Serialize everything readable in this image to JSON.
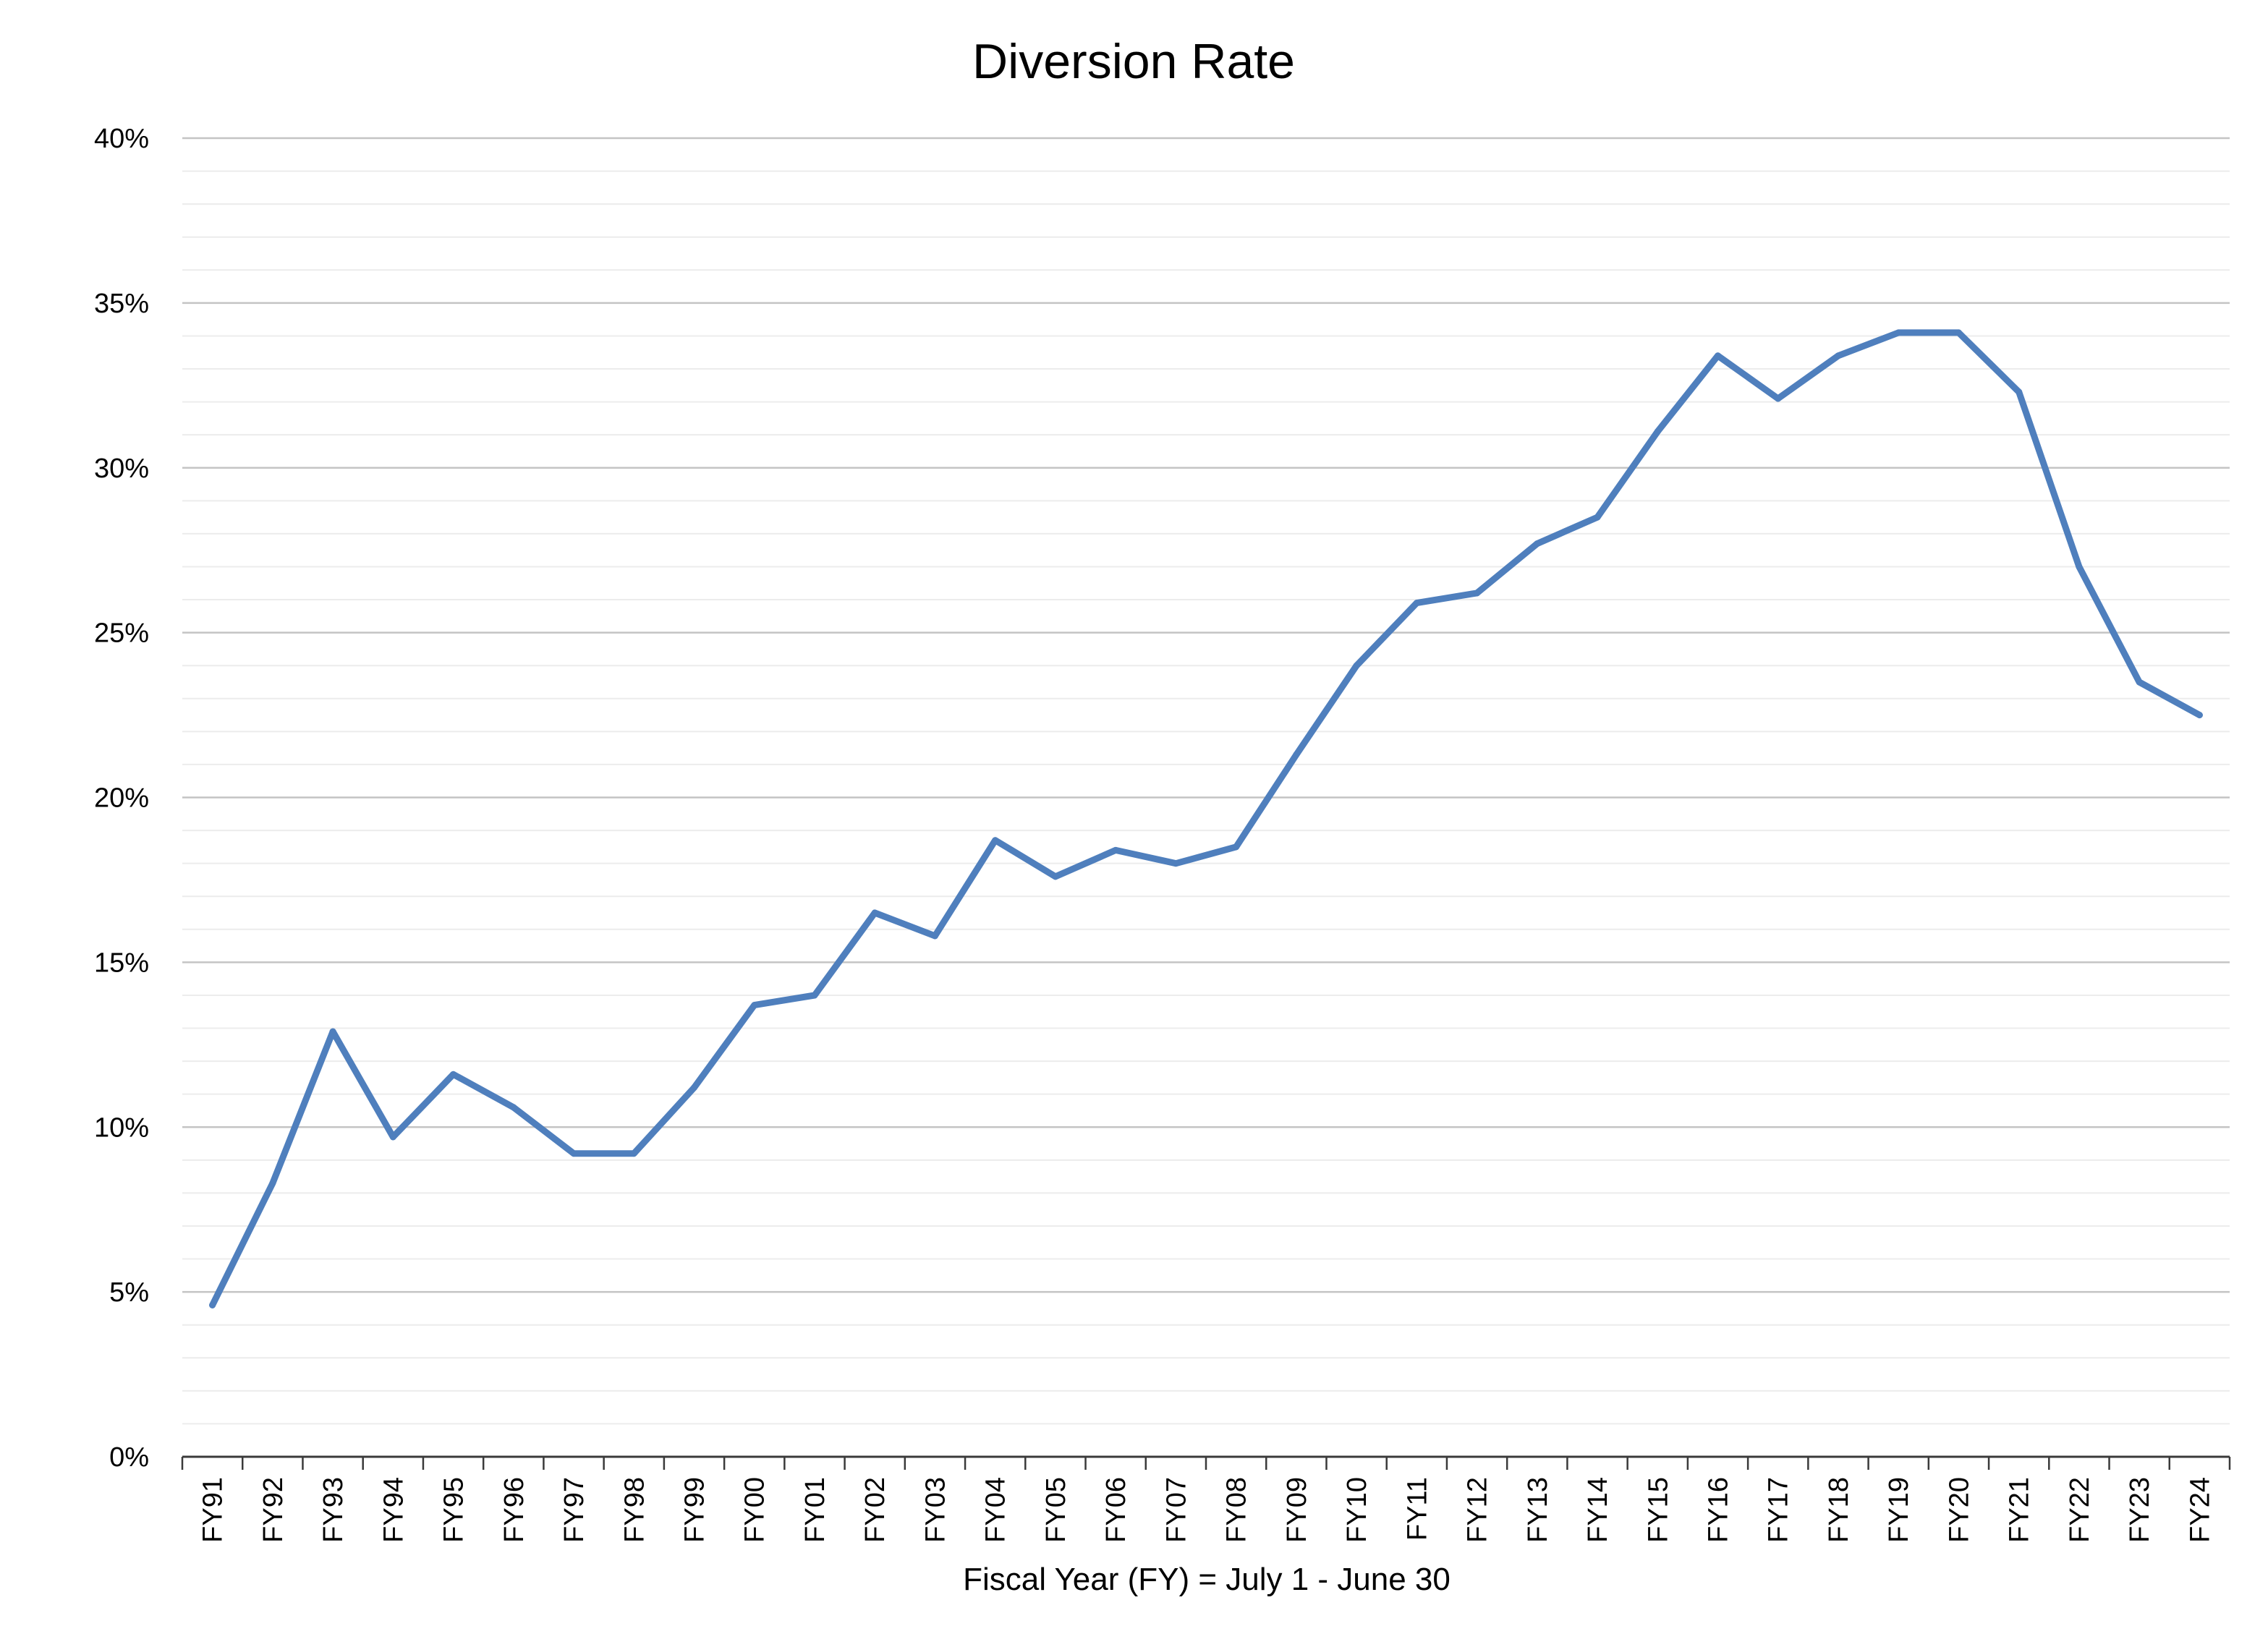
{
  "chart_data": {
    "type": "line",
    "title": "Diversion Rate",
    "xlabel": "Fiscal Year (FY) = July 1 - June 30",
    "ylabel": "",
    "ylim": [
      0,
      40
    ],
    "y_ticks": [
      0,
      5,
      10,
      15,
      20,
      25,
      30,
      35,
      40
    ],
    "y_tick_labels": [
      "0%",
      "5%",
      "10%",
      "15%",
      "20%",
      "25%",
      "30%",
      "35%",
      "40%"
    ],
    "grid": true,
    "legend": "none",
    "categories": [
      "FY91",
      "FY92",
      "FY93",
      "FY94",
      "FY95",
      "FY96",
      "FY97",
      "FY98",
      "FY99",
      "FY00",
      "FY01",
      "FY02",
      "FY03",
      "FY04",
      "FY05",
      "FY06",
      "FY07",
      "FY08",
      "FY09",
      "FY10",
      "FY11",
      "FY12",
      "FY13",
      "FY14",
      "FY15",
      "FY16",
      "FY17",
      "FY18",
      "FY19",
      "FY20",
      "FY21",
      "FY22",
      "FY23",
      "FY24"
    ],
    "series": [
      {
        "values": [
          4.6,
          8.3,
          12.9,
          9.7,
          11.6,
          10.6,
          9.2,
          9.2,
          11.2,
          13.7,
          14.0,
          16.5,
          15.8,
          18.7,
          17.6,
          18.4,
          18.0,
          18.5,
          21.3,
          24.0,
          25.9,
          26.2,
          27.7,
          28.5,
          31.1,
          33.4,
          32.1,
          33.4,
          34.1,
          34.1,
          32.3,
          27.0,
          23.5,
          22.5
        ],
        "color": "#4F7FBD"
      }
    ]
  }
}
